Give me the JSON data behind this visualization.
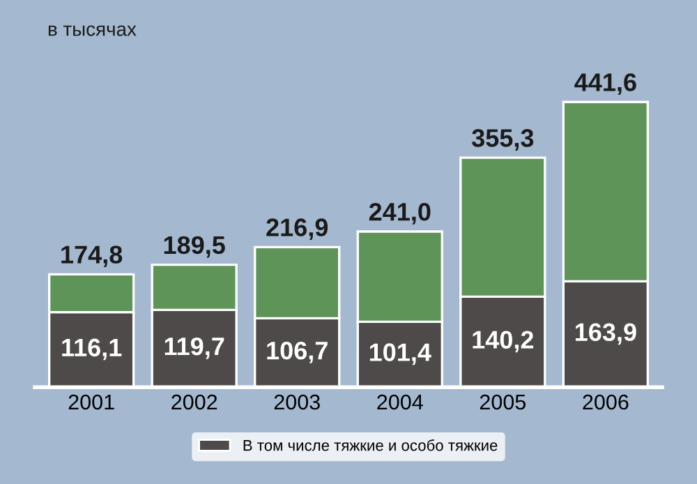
{
  "chart_data": {
    "type": "bar",
    "subtitle": "в тысячах",
    "stacked": true,
    "categories": [
      "2001",
      "2002",
      "2003",
      "2004",
      "2005",
      "2006"
    ],
    "series": [
      {
        "name": "В том числе тяжкие и особо тяжкие",
        "color": "#4f4a4a",
        "values": [
          116.1,
          119.7,
          106.7,
          101.4,
          140.2,
          163.9
        ],
        "value_labels": [
          "116,1",
          "119,7",
          "106,7",
          "101,4",
          "140,2",
          "163,9"
        ]
      },
      {
        "color": "#5e9458",
        "values": [
          58.7,
          69.8,
          110.2,
          139.6,
          215.1,
          277.7
        ]
      }
    ],
    "totals": [
      "174,8",
      "189,5",
      "216,9",
      "241,0",
      "355,3",
      "441,6"
    ],
    "tick_labels": "x",
    "grid": false,
    "legend": "bottom"
  }
}
